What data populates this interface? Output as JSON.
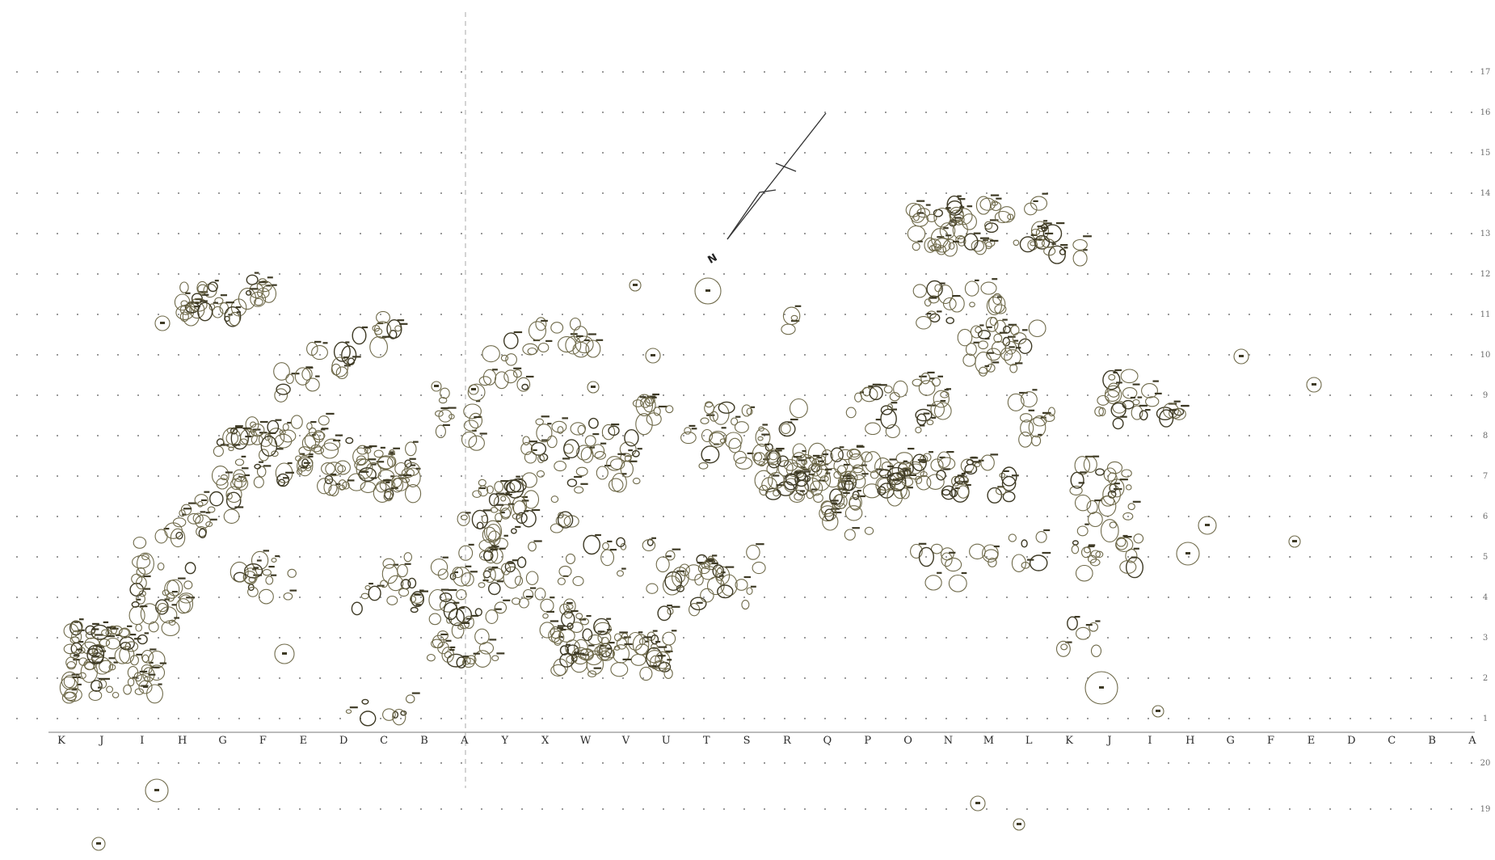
{
  "map": {
    "north_label": "N",
    "column_labels": [
      "K",
      "J",
      "I",
      "H",
      "G",
      "F",
      "E",
      "D",
      "C",
      "B",
      "A",
      "Y",
      "X",
      "W",
      "V",
      "U",
      "T",
      "S",
      "R",
      "Q",
      "P",
      "O",
      "N",
      "M",
      "L",
      "K",
      "J",
      "I",
      "H",
      "G",
      "F",
      "E",
      "D",
      "C",
      "B",
      "A"
    ],
    "row_labels": [
      "17",
      "16",
      "15",
      "14",
      "13",
      "12",
      "11",
      "10",
      "9",
      "8",
      "7",
      "6",
      "5",
      "4",
      "3",
      "2",
      "1",
      "20",
      "19"
    ],
    "colors": {
      "outline": "#6f6a4a",
      "grid": "#9a9a9a",
      "ink": "#2a2a2a"
    }
  }
}
